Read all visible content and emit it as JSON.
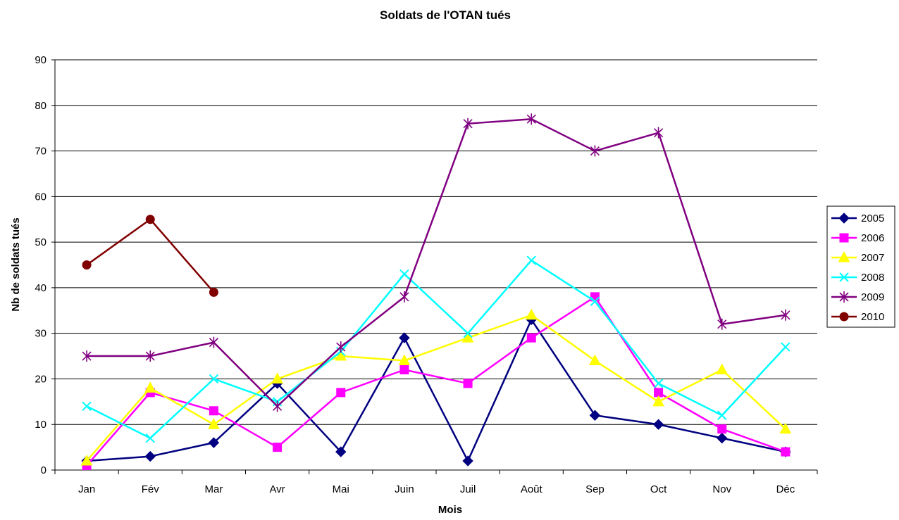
{
  "chart_data": {
    "type": "line",
    "title": "Soldats de l'OTAN tués",
    "xlabel": "Mois",
    "ylabel": "Nb de soldats tués",
    "ylim": [
      0,
      90
    ],
    "ytick_step": 10,
    "grid": true,
    "legend_position": "right",
    "categories": [
      "Jan",
      "Fév",
      "Mar",
      "Avr",
      "Mai",
      "Juin",
      "Juil",
      "Août",
      "Sep",
      "Oct",
      "Nov",
      "Déc"
    ],
    "series": [
      {
        "name": "2005",
        "color": "#000080",
        "marker": "diamond",
        "values": [
          2,
          3,
          6,
          19,
          4,
          29,
          2,
          33,
          12,
          10,
          7,
          4
        ]
      },
      {
        "name": "2006",
        "color": "#ff00ff",
        "marker": "square",
        "values": [
          1,
          17,
          13,
          5,
          17,
          22,
          19,
          29,
          38,
          17,
          9,
          4
        ]
      },
      {
        "name": "2007",
        "color": "#ffff00",
        "marker": "triangle",
        "values": [
          2,
          18,
          10,
          20,
          25,
          24,
          29,
          34,
          24,
          15,
          22,
          9
        ]
      },
      {
        "name": "2008",
        "color": "#00ffff",
        "marker": "x",
        "values": [
          14,
          7,
          20,
          15,
          26,
          43,
          30,
          46,
          37,
          19,
          12,
          27
        ]
      },
      {
        "name": "2009",
        "color": "#800080",
        "marker": "star",
        "values": [
          25,
          25,
          28,
          14,
          27,
          38,
          76,
          77,
          70,
          74,
          32,
          34
        ]
      },
      {
        "name": "2010",
        "color": "#800000",
        "marker": "circle",
        "values": [
          45,
          55,
          39,
          null,
          null,
          null,
          null,
          null,
          null,
          null,
          null,
          null
        ]
      }
    ]
  }
}
